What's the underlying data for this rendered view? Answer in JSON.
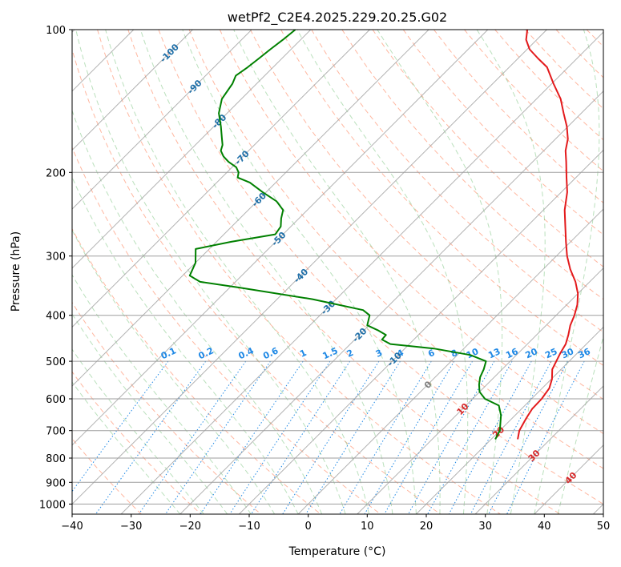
{
  "chart_data": {
    "type": "skew-t",
    "title": "wetPf2_C2E4.2025.229.20.25.G02",
    "xlabel": "Temperature (°C)",
    "ylabel": "Pressure (hPa)",
    "xlim": [
      -40,
      50
    ],
    "ylim": [
      1050,
      100
    ],
    "y_scale": "log",
    "grid": true,
    "x_ticks": [
      "−40",
      "−30",
      "−20",
      "−10",
      "0",
      "10",
      "20",
      "30",
      "40",
      "50"
    ],
    "y_ticks": [
      "100",
      "200",
      "300",
      "400",
      "500",
      "600",
      "700",
      "800",
      "900",
      "1000"
    ],
    "x_tick_values": [
      -40,
      -30,
      -20,
      -10,
      0,
      10,
      20,
      30,
      40,
      50
    ],
    "y_tick_values": [
      100,
      200,
      300,
      400,
      500,
      600,
      700,
      800,
      900,
      1000
    ],
    "mixing_ratio_labels": [
      "0.1",
      "0.2",
      "0.4",
      "0.6",
      "1",
      "1.5",
      "2",
      "3",
      "4",
      "6",
      "8",
      "10",
      "13",
      "16",
      "20",
      "25",
      "30",
      "36"
    ],
    "mixing_ratio_values": [
      0.1,
      0.2,
      0.4,
      0.6,
      1,
      1.5,
      2,
      3,
      4,
      6,
      8,
      10,
      13,
      16,
      20,
      25,
      30,
      36
    ],
    "isotherm_labels": [
      "-100",
      "-90",
      "-80",
      "-70",
      "-60",
      "-50",
      "-40",
      "-30",
      "-20",
      "-10",
      "0",
      "10",
      "20",
      "30",
      "40"
    ],
    "isotherm_values": [
      -100,
      -90,
      -80,
      -70,
      -60,
      -50,
      -40,
      -30,
      -20,
      -10,
      0,
      10,
      20,
      30,
      40
    ],
    "colors": {
      "temperature": "#e31a1c",
      "dewpoint": "#008000",
      "isotherm_label_cold": "#1f6fa8",
      "isotherm_label_zero": "#7f7f7f",
      "isotherm_label_warm": "#d62728",
      "mixing_ratio": "#1e88e5",
      "dry_adiabat": "#ff9f80",
      "moist_adiabat": "#66bb6a",
      "skew_grid": "#9e9e9e"
    },
    "series": [
      {
        "name": "",
        "role": "temperature",
        "points": [
          [
            24.5,
            730
          ],
          [
            23.3,
            700
          ],
          [
            22.4,
            660
          ],
          [
            21.8,
            630
          ],
          [
            21.7,
            600
          ],
          [
            21.2,
            570
          ],
          [
            20.1,
            545
          ],
          [
            18.5,
            520
          ],
          [
            17.1,
            480
          ],
          [
            16.5,
            460
          ],
          [
            15.4,
            440
          ],
          [
            14.1,
            420
          ],
          [
            13.1,
            400
          ],
          [
            11.8,
            380
          ],
          [
            10.0,
            360
          ],
          [
            7.6,
            340
          ],
          [
            4.6,
            320
          ],
          [
            1.8,
            300
          ],
          [
            -0.8,
            280
          ],
          [
            -3.5,
            260
          ],
          [
            -6.4,
            240
          ],
          [
            -9.0,
            220
          ],
          [
            -11.6,
            205
          ],
          [
            -14.3,
            190
          ],
          [
            -16.3,
            180
          ],
          [
            -17.9,
            170
          ],
          [
            -20.2,
            160
          ],
          [
            -23.0,
            150
          ],
          [
            -25.9,
            140
          ],
          [
            -29.7,
            130
          ],
          [
            -33.6,
            120
          ],
          [
            -36.6,
            115
          ],
          [
            -39.6,
            110
          ],
          [
            -41.8,
            105
          ],
          [
            -43.3,
            100
          ]
        ]
      },
      {
        "name": "",
        "role": "dewpoint",
        "points": [
          [
            20.7,
            730
          ],
          [
            20.0,
            700
          ],
          [
            17.6,
            650
          ],
          [
            15.6,
            620
          ],
          [
            12.1,
            600
          ],
          [
            10.0,
            580
          ],
          [
            8.7,
            560
          ],
          [
            7.6,
            540
          ],
          [
            6.9,
            520
          ],
          [
            5.9,
            500
          ],
          [
            2.2,
            485
          ],
          [
            -5.1,
            470
          ],
          [
            -13.2,
            460
          ],
          [
            -15.4,
            450
          ],
          [
            -15.5,
            440
          ],
          [
            -17.7,
            430
          ],
          [
            -20.3,
            420
          ],
          [
            -21.6,
            400
          ],
          [
            -23.6,
            390
          ],
          [
            -34.0,
            370
          ],
          [
            -48.2,
            350
          ],
          [
            -56.0,
            340
          ],
          [
            -58.8,
            330
          ],
          [
            -60.0,
            310
          ],
          [
            -62.3,
            290
          ],
          [
            -57.5,
            280
          ],
          [
            -51.3,
            270
          ],
          [
            -51.7,
            260
          ],
          [
            -53.0,
            250
          ],
          [
            -54.1,
            240
          ],
          [
            -56.7,
            230
          ],
          [
            -60.6,
            220
          ],
          [
            -64.4,
            210
          ],
          [
            -67.3,
            205
          ],
          [
            -68.0,
            200
          ],
          [
            -69.3,
            195
          ],
          [
            -71.5,
            190
          ],
          [
            -73.3,
            185
          ],
          [
            -74.7,
            180
          ],
          [
            -75.4,
            175
          ],
          [
            -76.5,
            170
          ],
          [
            -78.8,
            160
          ],
          [
            -81.4,
            150
          ],
          [
            -83.3,
            140
          ],
          [
            -84.1,
            130
          ],
          [
            -84.9,
            125
          ],
          [
            -84.3,
            120
          ],
          [
            -83.9,
            115
          ],
          [
            -83.5,
            110
          ],
          [
            -83.0,
            105
          ],
          [
            -82.6,
            100
          ]
        ]
      }
    ]
  }
}
